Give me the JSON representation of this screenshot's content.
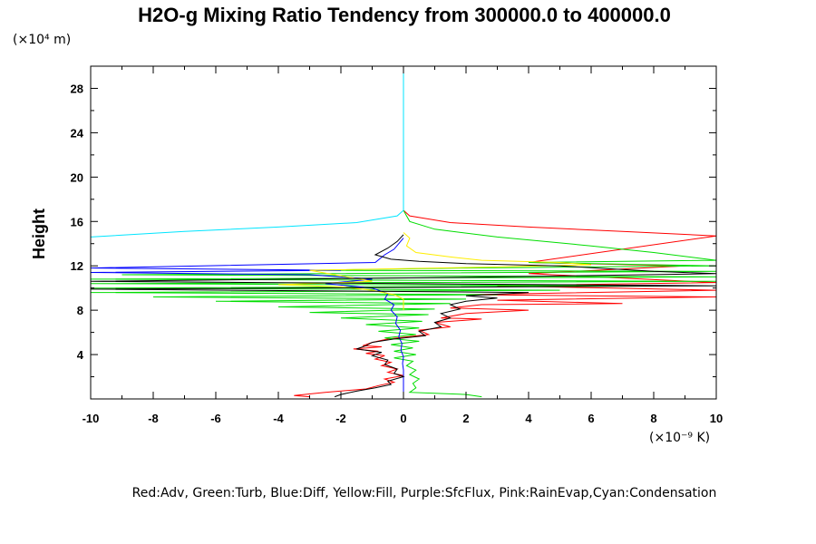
{
  "chart_data": {
    "type": "line",
    "title": "H2O-g Mixing Ratio Tendency from 300000.0 to 400000.0",
    "xlabel": "",
    "ylabel": "Height",
    "x_unit": "(×10⁻⁹ K)",
    "y_unit": "(×10⁴ m)",
    "xlim": [
      -10,
      10
    ],
    "ylim": [
      0,
      30
    ],
    "x_ticks": [
      -10,
      -8,
      -6,
      -4,
      -2,
      0,
      2,
      4,
      6,
      8,
      10
    ],
    "x_tick_labels": [
      "-10",
      "-8",
      "-6",
      "-4",
      "-2",
      "0",
      "2",
      "4",
      "6",
      "8",
      "10"
    ],
    "y_ticks": [
      4,
      8,
      12,
      16,
      20,
      24,
      28
    ],
    "y_tick_labels": [
      "4",
      "8",
      "12",
      "16",
      "20",
      "24",
      "28"
    ],
    "grid": false,
    "legend_text": "Red:Adv, Green:Turb, Blue:Diff, Yellow:Fill, Purple:SfcFlux, Pink:RainEvap,Cyan:Condensation",
    "series": [
      {
        "name": "Adv",
        "color": "#ff0000",
        "points": [
          [
            0,
            30
          ],
          [
            0,
            18
          ],
          [
            0,
            17
          ],
          [
            0.2,
            16.5
          ],
          [
            1.5,
            15.9
          ],
          [
            4,
            15.5
          ],
          [
            7,
            15.1
          ],
          [
            10,
            14.7
          ],
          [
            4,
            12.3
          ],
          [
            9,
            12
          ],
          [
            4,
            11.3
          ],
          [
            10,
            10.5
          ],
          [
            3,
            10.2
          ],
          [
            10,
            9.8
          ],
          [
            2,
            9.4
          ],
          [
            10,
            9.2
          ],
          [
            3,
            8.9
          ],
          [
            7,
            8.6
          ],
          [
            2.5,
            8.5
          ],
          [
            1.5,
            8.2
          ],
          [
            4,
            8
          ],
          [
            2,
            7.7
          ],
          [
            1.2,
            7.3
          ],
          [
            2.5,
            7.2
          ],
          [
            1,
            6.9
          ],
          [
            1.5,
            6.5
          ],
          [
            0.5,
            6.2
          ],
          [
            0.8,
            5.8
          ],
          [
            -0.5,
            5.4
          ],
          [
            -1,
            5.1
          ],
          [
            -1.3,
            4.8
          ],
          [
            -0.7,
            4.7
          ],
          [
            -1.6,
            4.5
          ],
          [
            -0.8,
            4.3
          ],
          [
            -1.2,
            4.1
          ],
          [
            -0.6,
            3.9
          ],
          [
            -0.9,
            3.6
          ],
          [
            -0.4,
            3.3
          ],
          [
            -0.7,
            3
          ],
          [
            -0.2,
            2.7
          ],
          [
            -0.5,
            2.4
          ],
          [
            0,
            2.1
          ],
          [
            -0.6,
            1.8
          ],
          [
            -0.3,
            1.5
          ],
          [
            -0.8,
            1.2
          ],
          [
            -1.2,
            0.9
          ],
          [
            -2.5,
            0.6
          ],
          [
            -3.5,
            0.3
          ],
          [
            -3,
            0.2
          ]
        ]
      },
      {
        "name": "Turb",
        "color": "#00dd00",
        "points": [
          [
            0,
            30
          ],
          [
            0,
            17
          ],
          [
            0.2,
            16
          ],
          [
            1,
            15.3
          ],
          [
            3,
            14.6
          ],
          [
            6,
            13.8
          ],
          [
            8,
            13.2
          ],
          [
            10,
            12.5
          ],
          [
            4,
            12.3
          ],
          [
            10,
            12
          ],
          [
            2,
            11.8
          ],
          [
            -3,
            11.6
          ],
          [
            10,
            11.5
          ],
          [
            -9,
            11.2
          ],
          [
            10,
            11
          ],
          [
            -10,
            10.8
          ],
          [
            10,
            10.6
          ],
          [
            -10,
            10.4
          ],
          [
            8,
            10.2
          ],
          [
            -10,
            10
          ],
          [
            5,
            9.8
          ],
          [
            -10,
            9.6
          ],
          [
            3,
            9.4
          ],
          [
            -8,
            9.2
          ],
          [
            2,
            9
          ],
          [
            -6,
            8.8
          ],
          [
            1.5,
            8.6
          ],
          [
            -4,
            8.3
          ],
          [
            1,
            8.1
          ],
          [
            -3,
            7.8
          ],
          [
            0.8,
            7.6
          ],
          [
            -2,
            7.3
          ],
          [
            0.6,
            7
          ],
          [
            -1.2,
            6.7
          ],
          [
            0.5,
            6.4
          ],
          [
            -0.8,
            6.1
          ],
          [
            0.4,
            5.8
          ],
          [
            -0.6,
            5.5
          ],
          [
            0.5,
            5.2
          ],
          [
            -0.4,
            4.9
          ],
          [
            0.3,
            4.6
          ],
          [
            -0.3,
            4.3
          ],
          [
            0.4,
            4
          ],
          [
            -0.3,
            3.7
          ],
          [
            0.3,
            3.4
          ],
          [
            0.1,
            3
          ],
          [
            0.4,
            2.6
          ],
          [
            0.2,
            2.2
          ],
          [
            0.5,
            1.8
          ],
          [
            0.3,
            1.4
          ],
          [
            0.4,
            1
          ],
          [
            0.2,
            0.6
          ],
          [
            2,
            0.4
          ],
          [
            2.5,
            0.2
          ]
        ]
      },
      {
        "name": "Diff",
        "color": "#0000ff",
        "points": [
          [
            0,
            14.5
          ],
          [
            -0.3,
            13.5
          ],
          [
            -0.6,
            13
          ],
          [
            -0.9,
            12.3
          ],
          [
            -10,
            11.8
          ],
          [
            -2,
            11.6
          ],
          [
            -10,
            11.4
          ],
          [
            -3,
            11.2
          ],
          [
            -1,
            10.8
          ],
          [
            -2.5,
            10.4
          ],
          [
            -1,
            10
          ],
          [
            -0.5,
            9.5
          ],
          [
            -0.6,
            9
          ],
          [
            -0.3,
            8.5
          ],
          [
            -0.4,
            8
          ],
          [
            -0.2,
            7.4
          ],
          [
            -0.25,
            6.8
          ],
          [
            -0.1,
            6.2
          ],
          [
            -0.15,
            5.6
          ],
          [
            -0.05,
            5
          ],
          [
            -0.08,
            4.4
          ],
          [
            0,
            3.8
          ],
          [
            -0.03,
            3.2
          ],
          [
            0,
            2.6
          ],
          [
            0,
            2
          ],
          [
            0,
            1.4
          ],
          [
            0,
            0.8
          ],
          [
            0,
            0.2
          ]
        ]
      },
      {
        "name": "Fill",
        "color": "#ffee00",
        "points": [
          [
            0,
            15
          ],
          [
            0.2,
            14.5
          ],
          [
            0.1,
            13.8
          ],
          [
            0.4,
            13.2
          ],
          [
            1.5,
            12.8
          ],
          [
            2.5,
            12.5
          ],
          [
            5,
            12.3
          ],
          [
            6,
            12.1
          ],
          [
            3,
            11.9
          ],
          [
            -3,
            11.6
          ],
          [
            -1,
            10.6
          ],
          [
            -4,
            10.3
          ],
          [
            -2,
            10.1
          ],
          [
            -1,
            9.8
          ],
          [
            -0.3,
            9.4
          ],
          [
            0,
            9
          ],
          [
            0,
            8
          ]
        ]
      },
      {
        "name": "Condensation",
        "color": "#00e5ff",
        "points": [
          [
            0,
            30
          ],
          [
            0,
            18
          ],
          [
            0,
            17
          ],
          [
            -0.2,
            16.5
          ],
          [
            -1.5,
            15.9
          ],
          [
            -4,
            15.5
          ],
          [
            -7,
            15.1
          ],
          [
            -10,
            14.6
          ]
        ]
      },
      {
        "name": "Net",
        "color": "#000000",
        "points": [
          [
            0,
            14.8
          ],
          [
            -0.2,
            14.2
          ],
          [
            -0.5,
            13.6
          ],
          [
            -0.9,
            13
          ],
          [
            -0.4,
            12.6
          ],
          [
            0.5,
            12.4
          ],
          [
            2,
            12.2
          ],
          [
            5,
            12
          ],
          [
            8,
            11.5
          ],
          [
            10,
            11.3
          ],
          [
            3,
            11
          ],
          [
            -10,
            10.6
          ],
          [
            10,
            10.2
          ],
          [
            -10,
            9.9
          ],
          [
            4,
            9.6
          ],
          [
            2,
            9.3
          ],
          [
            3,
            9.1
          ],
          [
            2,
            8.8
          ],
          [
            1.5,
            8.5
          ],
          [
            1.8,
            8.1
          ],
          [
            1.2,
            7.7
          ],
          [
            1.5,
            7.3
          ],
          [
            1,
            6.9
          ],
          [
            1.2,
            6.5
          ],
          [
            0.5,
            6.1
          ],
          [
            0.7,
            5.7
          ],
          [
            -0.3,
            5.4
          ],
          [
            -1,
            5.1
          ],
          [
            -1.2,
            4.8
          ],
          [
            -1.5,
            4.5
          ],
          [
            -0.7,
            4.2
          ],
          [
            -1,
            3.9
          ],
          [
            -0.5,
            3.5
          ],
          [
            -0.6,
            3.1
          ],
          [
            -0.2,
            2.7
          ],
          [
            -0.3,
            2.3
          ],
          [
            0,
            2
          ],
          [
            -0.5,
            1.6
          ],
          [
            -0.4,
            1.3
          ],
          [
            -0.9,
            1
          ],
          [
            -1.5,
            0.7
          ],
          [
            -2,
            0.4
          ],
          [
            -2.2,
            0.2
          ]
        ]
      }
    ]
  }
}
